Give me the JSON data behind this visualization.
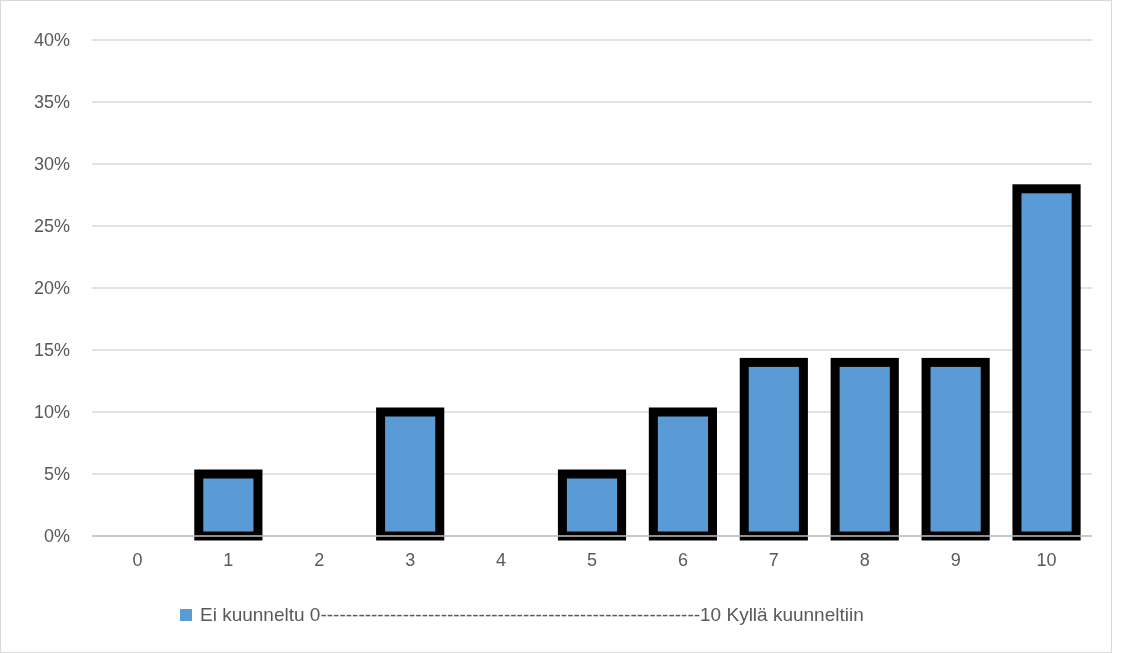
{
  "chart_data": {
    "type": "bar",
    "categories": [
      "0",
      "1",
      "2",
      "3",
      "4",
      "5",
      "6",
      "7",
      "8",
      "9",
      "10"
    ],
    "series": [
      {
        "name": "Ei kuunneltu 0------------------------------------------------------------10  Kyllä kuunneltiin",
        "color": "#5b9bd5",
        "values": [
          0,
          5,
          0,
          10,
          0,
          5,
          10,
          14,
          14,
          14,
          28
        ]
      }
    ],
    "ylim": [
      0,
      40
    ],
    "yticks": [
      {
        "value": 0,
        "label": "0%"
      },
      {
        "value": 5,
        "label": "5%"
      },
      {
        "value": 10,
        "label": "10%"
      },
      {
        "value": 15,
        "label": "15%"
      },
      {
        "value": 20,
        "label": "20%"
      },
      {
        "value": 25,
        "label": "25%"
      },
      {
        "value": 30,
        "label": "30%"
      },
      {
        "value": 35,
        "label": "35%"
      },
      {
        "value": 40,
        "label": "40%"
      }
    ],
    "grid": "y",
    "legend": "bottom"
  }
}
